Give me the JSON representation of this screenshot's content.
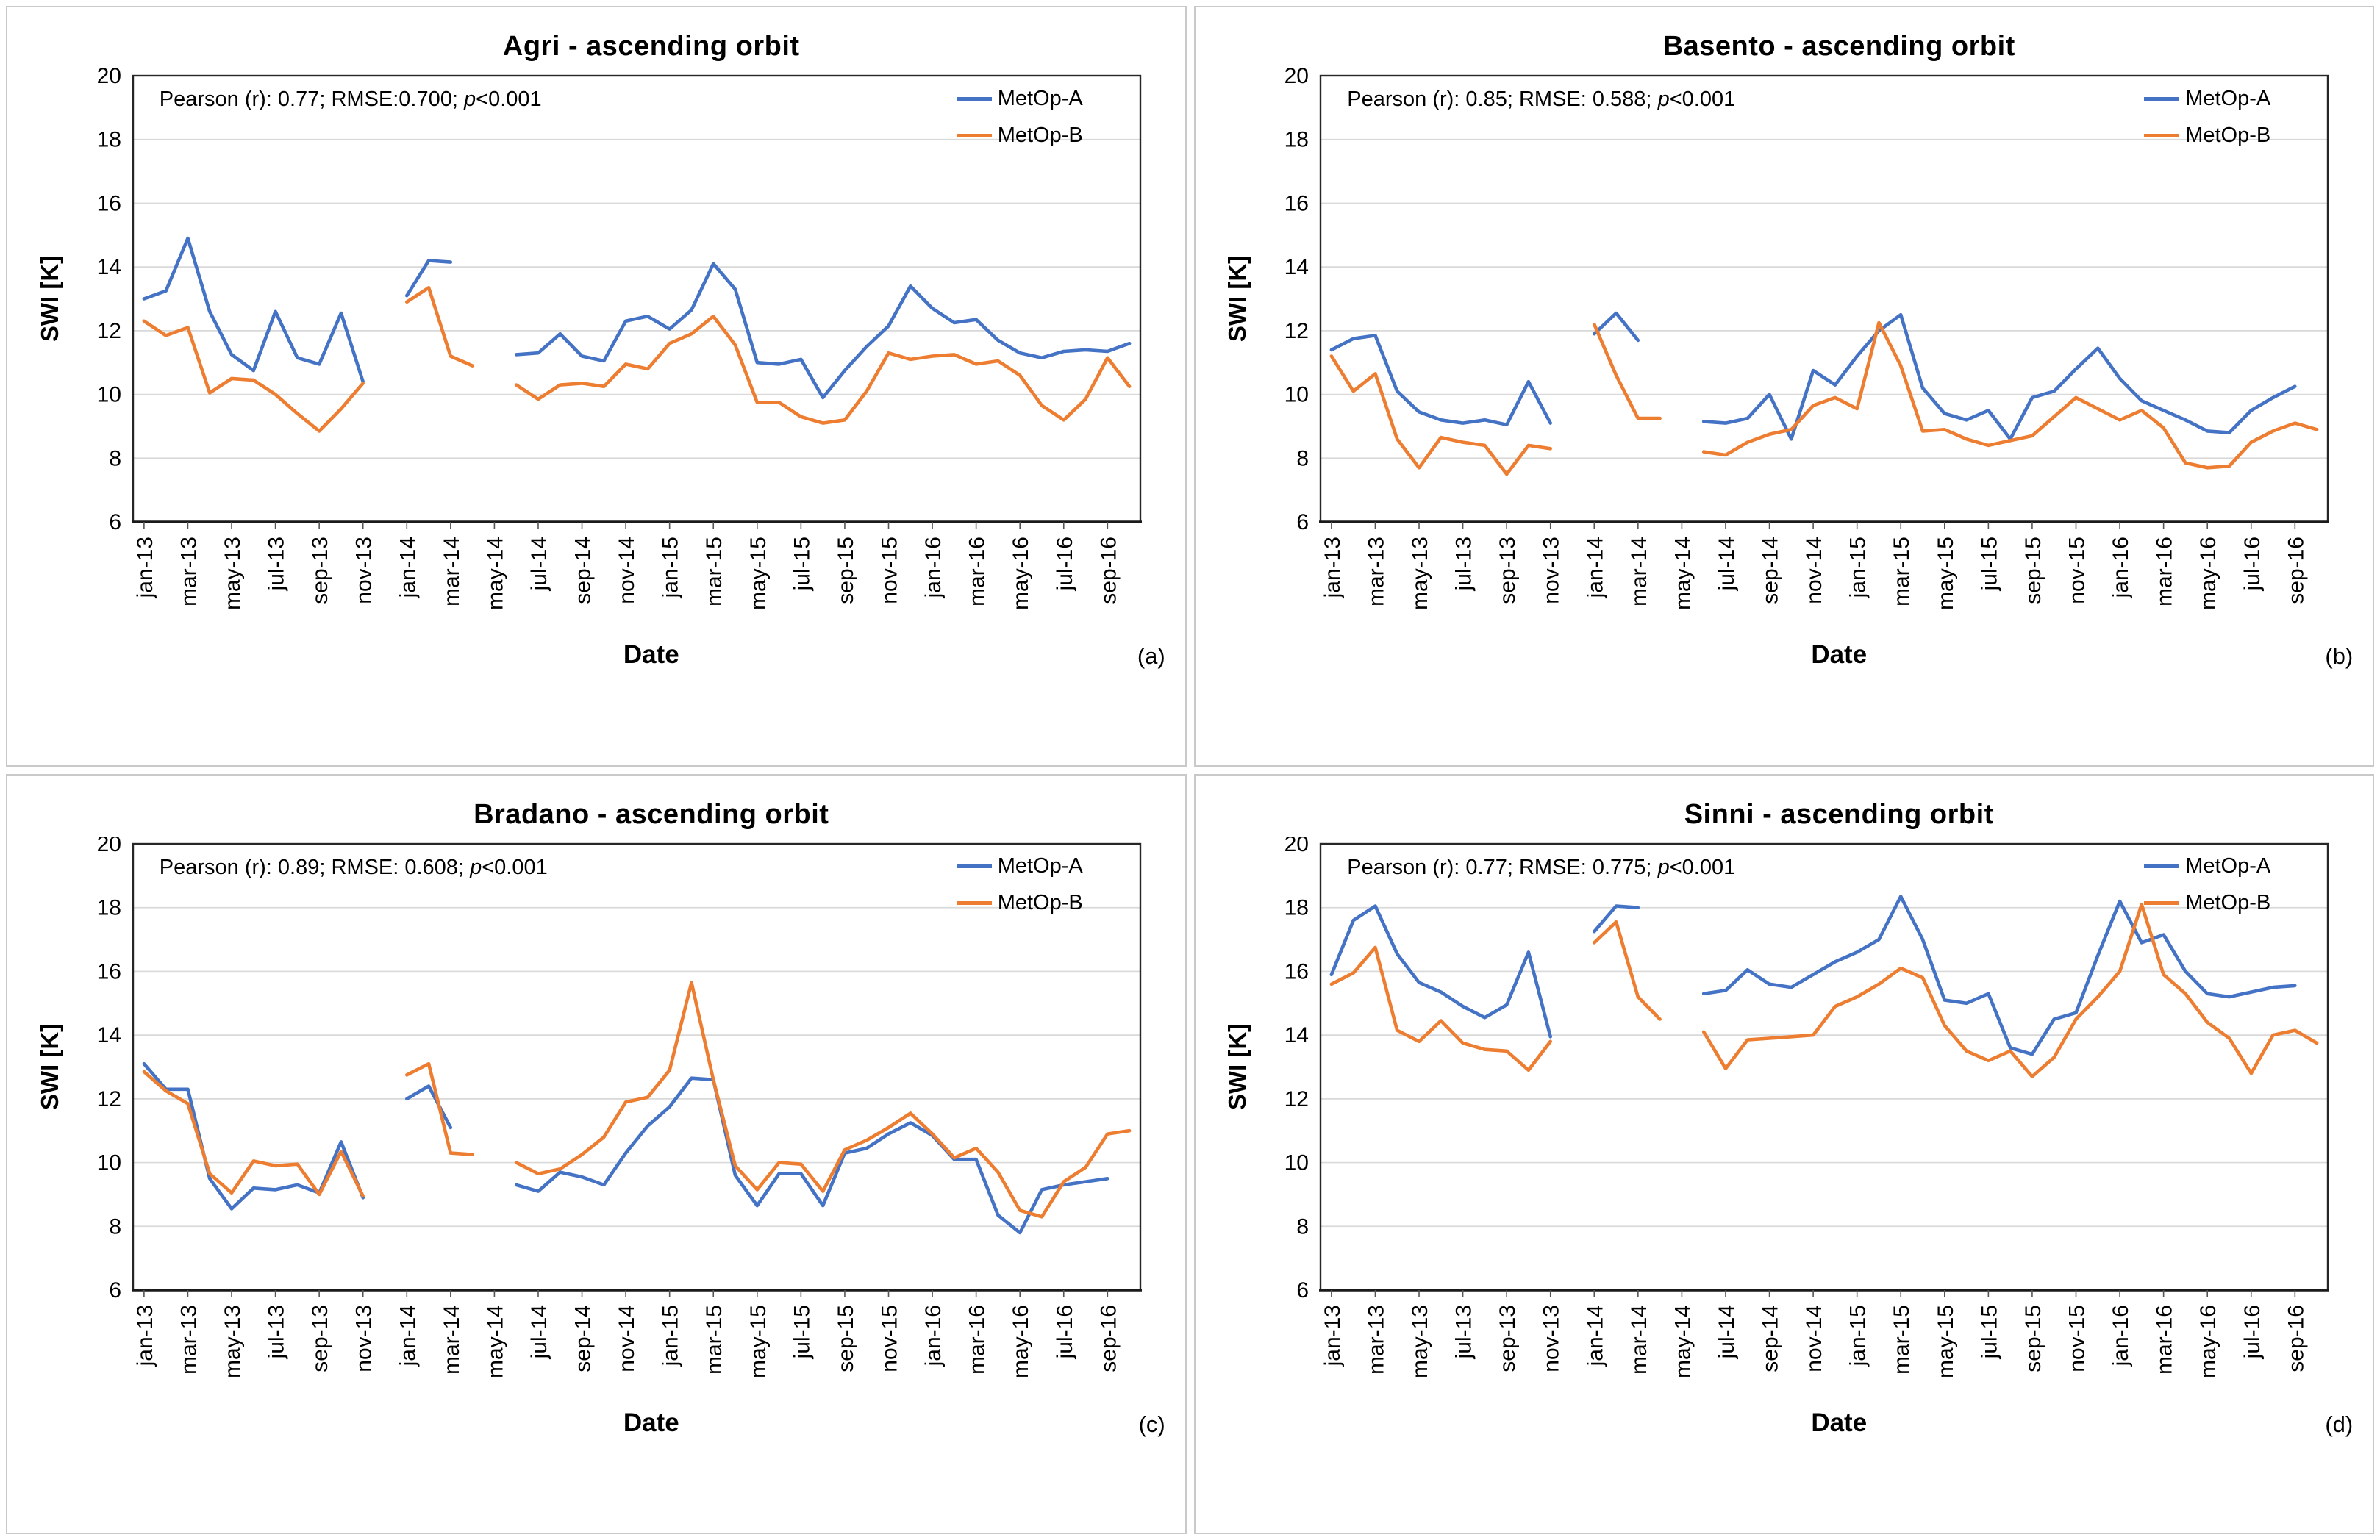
{
  "figure": {
    "legend": [
      {
        "name": "MetOp-A",
        "color": "#4472C4"
      },
      {
        "name": "MetOp-B",
        "color": "#ED7D31"
      }
    ],
    "colors": {
      "metop_a": "#4472C4",
      "metop_b": "#ED7D31",
      "gridline": "#d9d9d9",
      "plot_border": "#262626"
    }
  },
  "chart_data": [
    {
      "type": "line",
      "panel_letter": "(a)",
      "title": "Agri - ascending orbit",
      "stats": {
        "prefix": "Pearson (r): 0.77; RMSE:0.700; ",
        "p": "p",
        "suffix": "<0.001"
      },
      "xlabel": "Date",
      "ylabel": "SWI [K]",
      "ylim": [
        6,
        20
      ],
      "yticks": [
        20,
        18,
        16,
        14,
        12,
        10,
        8,
        6
      ],
      "grid": true,
      "legend_position": "top-right-inside",
      "n_points": 46,
      "x_tick_labels": [
        "jan-13",
        "mar-13",
        "may-13",
        "jul-13",
        "sep-13",
        "nov-13",
        "jan-14",
        "mar-14",
        "may-14",
        "jul-14",
        "sep-14",
        "nov-14",
        "jan-15",
        "mar-15",
        "may-15",
        "jul-15",
        "sep-15",
        "nov-15",
        "jan-16",
        "mar-16",
        "may-16",
        "jul-16",
        "sep-16"
      ],
      "series": [
        {
          "name": "MetOp-A",
          "color": "#4472C4",
          "values": [
            13,
            13.25,
            14.9,
            12.6,
            11.25,
            10.75,
            12.6,
            11.15,
            10.95,
            12.55,
            10.4,
            null,
            13.1,
            14.2,
            14.15,
            null,
            null,
            11.25,
            11.3,
            11.9,
            11.2,
            11.05,
            12.3,
            12.45,
            12.05,
            12.65,
            14.1,
            13.3,
            11,
            10.95,
            11.1,
            9.9,
            10.75,
            11.5,
            12.15,
            13.4,
            12.7,
            12.25,
            12.35,
            11.7,
            11.3,
            11.15,
            11.35,
            11.4,
            11.35,
            11.6
          ]
        },
        {
          "name": "MetOp-B",
          "color": "#ED7D31",
          "values": [
            12.3,
            11.85,
            12.1,
            10.05,
            10.5,
            10.45,
            10,
            9.4,
            8.85,
            9.55,
            10.35,
            null,
            12.9,
            13.35,
            11.2,
            10.9,
            null,
            10.3,
            9.85,
            10.3,
            10.35,
            10.25,
            10.95,
            10.8,
            11.6,
            11.9,
            12.45,
            11.55,
            9.75,
            9.75,
            9.3,
            9.1,
            9.2,
            10.1,
            11.3,
            11.1,
            11.2,
            11.25,
            10.95,
            11.05,
            10.6,
            9.65,
            9.2,
            9.85,
            11.15,
            10.25
          ]
        }
      ]
    },
    {
      "type": "line",
      "panel_letter": "(b)",
      "title": "Basento - ascending orbit",
      "stats": {
        "prefix": "Pearson (r): 0.85; RMSE: 0.588; ",
        "p": "p",
        "suffix": "<0.001"
      },
      "xlabel": "Date",
      "ylabel": "SWI [K]",
      "ylim": [
        6,
        20
      ],
      "yticks": [
        20,
        18,
        16,
        14,
        12,
        10,
        8,
        6
      ],
      "grid": true,
      "legend_position": "top-right-inside",
      "n_points": 46,
      "x_tick_labels": [
        "jan-13",
        "mar-13",
        "may-13",
        "jul-13",
        "sep-13",
        "nov-13",
        "jan-14",
        "mar-14",
        "may-14",
        "jul-14",
        "sep-14",
        "nov-14",
        "jan-15",
        "mar-15",
        "may-15",
        "jul-15",
        "sep-15",
        "nov-15",
        "jan-16",
        "mar-16",
        "may-16",
        "jul-16",
        "sep-16"
      ],
      "series": [
        {
          "name": "MetOp-A",
          "color": "#4472C4",
          "values": [
            11.4,
            11.75,
            11.85,
            10.1,
            9.45,
            9.2,
            9.1,
            9.2,
            9.05,
            10.4,
            9.1,
            null,
            11.9,
            12.55,
            11.7,
            null,
            null,
            9.15,
            9.1,
            9.25,
            10,
            8.6,
            10.75,
            10.3,
            11.2,
            12,
            12.5,
            10.2,
            9.4,
            9.2,
            9.5,
            8.6,
            9.9,
            10.1,
            10.8,
            11.45,
            10.5,
            9.8,
            9.5,
            9.2,
            8.85,
            8.8,
            9.5,
            9.9,
            10.25,
            null
          ]
        },
        {
          "name": "MetOp-B",
          "color": "#ED7D31",
          "values": [
            11.2,
            10.1,
            10.65,
            8.6,
            7.7,
            8.65,
            8.5,
            8.4,
            7.5,
            8.4,
            8.3,
            null,
            12.2,
            10.6,
            9.25,
            9.25,
            null,
            8.2,
            8.1,
            8.5,
            8.75,
            8.9,
            9.65,
            9.9,
            9.55,
            12.25,
            10.9,
            8.85,
            8.9,
            8.6,
            8.4,
            8.55,
            8.7,
            9.3,
            9.9,
            9.55,
            9.2,
            9.5,
            8.95,
            7.85,
            7.7,
            7.75,
            8.5,
            8.85,
            9.1,
            8.9
          ]
        }
      ]
    },
    {
      "type": "line",
      "panel_letter": "(c)",
      "title": "Bradano - ascending orbit",
      "stats": {
        "prefix": "Pearson (r): 0.89; RMSE: 0.608; ",
        "p": "p",
        "suffix": "<0.001"
      },
      "xlabel": "Date",
      "ylabel": "SWI [K]",
      "ylim": [
        6,
        20
      ],
      "yticks": [
        20,
        18,
        16,
        14,
        12,
        10,
        8,
        6
      ],
      "grid": true,
      "legend_position": "top-right-inside",
      "n_points": 46,
      "x_tick_labels": [
        "jan-13",
        "mar-13",
        "may-13",
        "jul-13",
        "sep-13",
        "nov-13",
        "jan-14",
        "mar-14",
        "may-14",
        "jul-14",
        "sep-14",
        "nov-14",
        "jan-15",
        "mar-15",
        "may-15",
        "jul-15",
        "sep-15",
        "nov-15",
        "jan-16",
        "mar-16",
        "may-16",
        "jul-16",
        "sep-16"
      ],
      "series": [
        {
          "name": "MetOp-A",
          "color": "#4472C4",
          "values": [
            13.1,
            12.3,
            12.3,
            9.5,
            8.55,
            9.2,
            9.15,
            9.3,
            9.05,
            10.65,
            8.9,
            null,
            12,
            12.4,
            11.1,
            null,
            null,
            9.3,
            9.1,
            9.7,
            9.55,
            9.3,
            10.3,
            11.15,
            11.75,
            12.65,
            12.6,
            9.6,
            8.65,
            9.65,
            9.65,
            8.65,
            10.3,
            10.45,
            10.9,
            11.25,
            10.85,
            10.1,
            10.1,
            8.35,
            7.8,
            9.15,
            9.3,
            9.4,
            9.5,
            null
          ]
        },
        {
          "name": "MetOp-B",
          "color": "#ED7D31",
          "values": [
            12.85,
            12.25,
            11.85,
            9.65,
            9.05,
            10.05,
            9.9,
            9.95,
            9,
            10.35,
            8.95,
            null,
            12.75,
            13.1,
            10.3,
            10.25,
            null,
            10,
            9.65,
            9.8,
            10.25,
            10.8,
            11.9,
            12.05,
            12.9,
            15.65,
            12.6,
            9.9,
            9.15,
            10,
            9.95,
            9.1,
            10.4,
            10.7,
            11.1,
            11.55,
            10.9,
            10.15,
            10.45,
            9.7,
            8.5,
            8.3,
            9.4,
            9.85,
            10.9,
            11
          ]
        }
      ]
    },
    {
      "type": "line",
      "panel_letter": "(d)",
      "title": "Sinni - ascending orbit",
      "stats": {
        "prefix": "Pearson (r): 0.77; RMSE: 0.775; ",
        "p": "p",
        "suffix": "<0.001"
      },
      "xlabel": "Date",
      "ylabel": "SWI [K]",
      "ylim": [
        6,
        20
      ],
      "yticks": [
        20,
        18,
        16,
        14,
        12,
        10,
        8,
        6
      ],
      "grid": true,
      "legend_position": "top-right-inside",
      "n_points": 46,
      "x_tick_labels": [
        "jan-13",
        "mar-13",
        "may-13",
        "jul-13",
        "sep-13",
        "nov-13",
        "jan-14",
        "mar-14",
        "may-14",
        "jul-14",
        "sep-14",
        "nov-14",
        "jan-15",
        "mar-15",
        "may-15",
        "jul-15",
        "sep-15",
        "nov-15",
        "jan-16",
        "mar-16",
        "may-16",
        "jul-16",
        "sep-16"
      ],
      "series": [
        {
          "name": "MetOp-A",
          "color": "#4472C4",
          "values": [
            15.9,
            17.6,
            18.05,
            16.55,
            15.65,
            15.35,
            14.9,
            14.55,
            14.95,
            16.6,
            13.95,
            null,
            17.25,
            18.05,
            18,
            null,
            null,
            15.3,
            15.4,
            16.05,
            15.6,
            15.5,
            15.9,
            16.3,
            16.6,
            17,
            18.35,
            17,
            15.1,
            15,
            15.3,
            13.6,
            13.4,
            14.5,
            14.7,
            16.5,
            18.2,
            16.9,
            17.15,
            16,
            15.3,
            15.2,
            15.35,
            15.5,
            15.55,
            null
          ]
        },
        {
          "name": "MetOp-B",
          "color": "#ED7D31",
          "values": [
            15.6,
            15.95,
            16.75,
            14.15,
            13.8,
            14.45,
            13.75,
            13.55,
            13.5,
            12.9,
            13.8,
            null,
            16.9,
            17.55,
            15.2,
            14.5,
            null,
            14.1,
            12.95,
            13.85,
            13.9,
            13.95,
            14,
            14.9,
            15.2,
            15.6,
            16.1,
            15.8,
            14.3,
            13.5,
            13.2,
            13.5,
            12.7,
            13.3,
            14.5,
            15.2,
            16,
            18.1,
            15.9,
            15.3,
            14.4,
            13.9,
            12.8,
            14,
            14.15,
            13.75
          ]
        }
      ]
    }
  ]
}
